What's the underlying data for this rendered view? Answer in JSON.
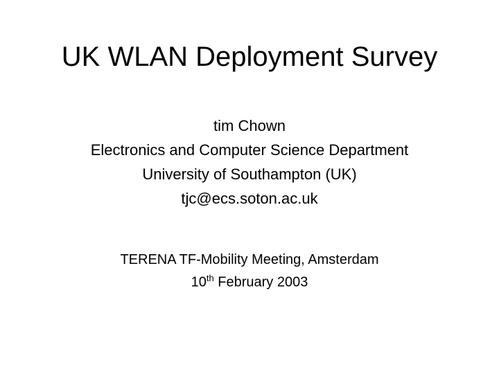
{
  "slide": {
    "title": "UK WLAN Deployment Survey",
    "author": {
      "name": "tim Chown",
      "department": "Electronics and Computer Science Department",
      "university": "University of Southampton (UK)",
      "email": "tjc@ecs.soton.ac.uk"
    },
    "meeting": {
      "name": "TERENA TF-Mobility Meeting, Amsterdam",
      "date_day": "10",
      "date_suffix": "th",
      "date_rest": " February 2003"
    },
    "styling": {
      "background_color": "#ffffff",
      "text_color": "#000000",
      "title_fontsize": 40,
      "body_fontsize": 22,
      "meeting_fontsize": 20,
      "font_family": "Comic Sans MS"
    }
  }
}
